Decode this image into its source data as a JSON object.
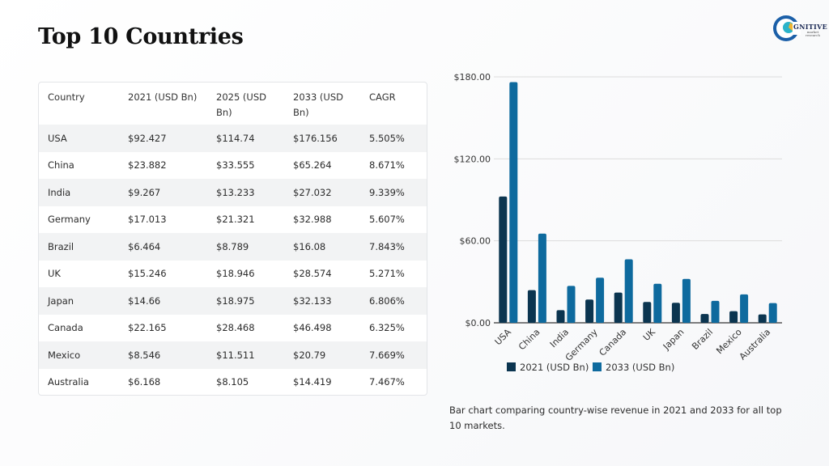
{
  "page": {
    "title": "Top 10 Countries",
    "logo_text": "GNITIVE",
    "logo_sub": "market research"
  },
  "table": {
    "headers": [
      "Country",
      "2021 (USD Bn)",
      "2025 (USD Bn)",
      "2033 (USD Bn)",
      "CAGR"
    ],
    "rows": [
      [
        "USA",
        "$92.427",
        "$114.74",
        "$176.156",
        "5.505%"
      ],
      [
        "China",
        "$23.882",
        "$33.555",
        "$65.264",
        "8.671%"
      ],
      [
        "India",
        "$9.267",
        "$13.233",
        "$27.032",
        "9.339%"
      ],
      [
        "Germany",
        "$17.013",
        "$21.321",
        "$32.988",
        "5.607%"
      ],
      [
        "Brazil",
        "$6.464",
        "$8.789",
        "$16.08",
        "7.843%"
      ],
      [
        "UK",
        "$15.246",
        "$18.946",
        "$28.574",
        "5.271%"
      ],
      [
        "Japan",
        "$14.66",
        "$18.975",
        "$32.133",
        "6.806%"
      ],
      [
        "Canada",
        "$22.165",
        "$28.468",
        "$46.498",
        "6.325%"
      ],
      [
        "Mexico",
        "$8.546",
        "$11.511",
        "$20.79",
        "7.669%"
      ],
      [
        "Australia",
        "$6.168",
        "$8.105",
        "$14.419",
        "7.467%"
      ]
    ]
  },
  "chart_data": {
    "type": "bar",
    "categories": [
      "USA",
      "China",
      "India",
      "Germany",
      "Canada",
      "UK",
      "Japan",
      "Brazil",
      "Mexico",
      "Australia"
    ],
    "series": [
      {
        "name": "2021 (USD Bn)",
        "color": "#0b3550",
        "values": [
          92.427,
          23.882,
          9.267,
          17.013,
          22.165,
          15.246,
          14.66,
          6.464,
          8.546,
          6.168
        ]
      },
      {
        "name": "2033 (USD Bn)",
        "color": "#0e6a9e",
        "values": [
          176.156,
          65.264,
          27.032,
          32.988,
          46.498,
          28.574,
          32.133,
          16.08,
          20.79,
          14.419
        ]
      }
    ],
    "ylim": [
      0,
      180
    ],
    "yticks": [
      0,
      60,
      120,
      180
    ],
    "ytick_labels": [
      "$0.00",
      "$60.00",
      "$120.00",
      "$180.00"
    ],
    "grid": true,
    "legend": "bottom"
  },
  "caption": "Bar chart comparing country-wise revenue in 2021 and 2033 for all top 10 markets."
}
